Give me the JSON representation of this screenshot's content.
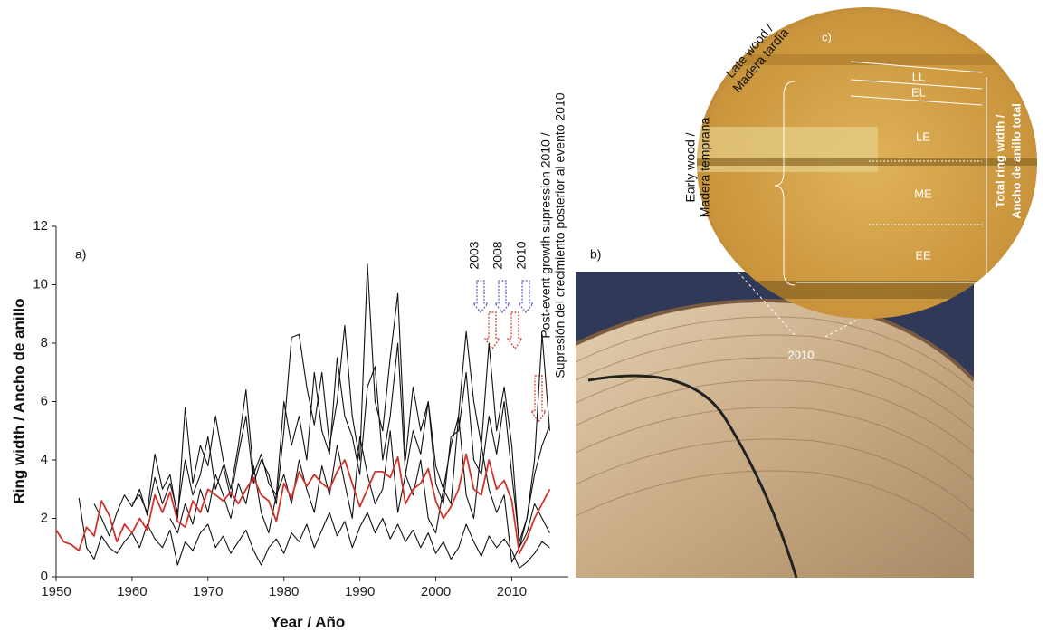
{
  "chart_data": {
    "type": "line",
    "panel_label": "a)",
    "x_label": "Year / Año",
    "y_label": "Ring width / Ancho de anillo",
    "x": [
      1950,
      1951,
      1952,
      1953,
      1954,
      1955,
      1956,
      1957,
      1958,
      1959,
      1960,
      1961,
      1962,
      1963,
      1964,
      1965,
      1966,
      1967,
      1968,
      1969,
      1970,
      1971,
      1972,
      1973,
      1974,
      1975,
      1976,
      1977,
      1978,
      1979,
      1980,
      1981,
      1982,
      1983,
      1984,
      1985,
      1986,
      1987,
      1988,
      1989,
      1990,
      1991,
      1992,
      1993,
      1994,
      1995,
      1996,
      1997,
      1998,
      1999,
      2000,
      2001,
      2002,
      2003,
      2004,
      2005,
      2006,
      2007,
      2008,
      2009,
      2010,
      2011,
      2012,
      2013,
      2014,
      2015
    ],
    "xlim": [
      1950,
      2016.5
    ],
    "xticks": [
      1950,
      1960,
      1970,
      1980,
      1990,
      2000,
      2010
    ],
    "ylim": [
      0,
      12
    ],
    "yticks": [
      0,
      2,
      4,
      6,
      8,
      10,
      12
    ],
    "grid": false,
    "series": [
      {
        "color": "#111111",
        "values": [
          null,
          null,
          null,
          null,
          null,
          2.5,
          2.0,
          1.4,
          2.2,
          2.8,
          2.4,
          3.0,
          2.1,
          3.4,
          2.5,
          3.2,
          2.2,
          4.0,
          2.8,
          3.5,
          4.8,
          3.0,
          3.8,
          2.7,
          4.2,
          5.5,
          3.2,
          4.0,
          3.5,
          2.5,
          5.0,
          8.2,
          8.3,
          6.5,
          5.2,
          7.0,
          4.5,
          6.0,
          8.6,
          5.5,
          4.0,
          10.7,
          6.0,
          5.0,
          7.5,
          9.7,
          4.0,
          6.5,
          5.0,
          6.0,
          3.8,
          3.0,
          4.5,
          5.5,
          8.4,
          6.0,
          4.5,
          8.0,
          5.0,
          6.5,
          4.5,
          1.0,
          2.0,
          4.0,
          8.3,
          5.0
        ]
      },
      {
        "color": "#111111",
        "values": [
          null,
          null,
          null,
          2.7,
          1.0,
          0.6,
          1.4,
          1.0,
          0.8,
          1.2,
          1.5,
          1.0,
          1.8,
          1.3,
          1.0,
          1.6,
          0.4,
          1.2,
          0.9,
          1.5,
          1.8,
          1.0,
          1.4,
          0.8,
          1.2,
          1.6,
          0.9,
          0.4,
          1.0,
          1.3,
          0.8,
          1.5,
          1.2,
          1.8,
          1.0,
          1.6,
          2.2,
          1.4,
          1.9,
          1.0,
          1.7,
          2.2,
          1.5,
          2.0,
          1.3,
          1.8,
          1.2,
          1.6,
          1.0,
          1.5,
          0.8,
          1.2,
          0.6,
          1.0,
          1.8,
          1.2,
          0.7,
          1.4,
          1.0,
          1.3,
          0.9,
          0.3,
          0.5,
          0.8,
          1.2,
          1.0
        ]
      },
      {
        "color": "#111111",
        "values": [
          null,
          null,
          null,
          null,
          null,
          null,
          null,
          null,
          null,
          null,
          2.5,
          2.8,
          2.2,
          4.2,
          3.0,
          3.5,
          2.0,
          5.8,
          3.2,
          4.5,
          3.8,
          5.5,
          4.0,
          3.0,
          4.5,
          6.4,
          3.5,
          4.2,
          3.2,
          2.8,
          6.0,
          4.5,
          5.5,
          4.0,
          7.0,
          5.0,
          4.2,
          7.5,
          5.5,
          4.8,
          3.5,
          6.5,
          7.2,
          4.0,
          5.5,
          8.0,
          3.5,
          5.0,
          4.2,
          6.0,
          3.2,
          2.5,
          4.8,
          5.0,
          7.0,
          4.0,
          3.5,
          5.5,
          4.2,
          6.0,
          3.5,
          1.2,
          2.0,
          3.5,
          4.5,
          5.2
        ]
      },
      {
        "color": "#111111",
        "values": [
          null,
          null,
          null,
          null,
          null,
          null,
          null,
          null,
          null,
          null,
          null,
          null,
          null,
          null,
          null,
          2.0,
          1.5,
          2.5,
          1.8,
          3.0,
          2.2,
          3.5,
          2.8,
          2.0,
          3.2,
          2.5,
          3.8,
          2.2,
          1.5,
          2.8,
          3.5,
          2.5,
          4.0,
          3.0,
          2.2,
          3.8,
          2.8,
          4.5,
          3.2,
          2.0,
          4.8,
          3.5,
          2.5,
          3.0,
          5.0,
          2.2,
          3.5,
          2.8,
          4.0,
          2.0,
          1.5,
          3.0,
          2.5,
          5.5,
          2.8,
          2.0,
          4.5,
          3.0,
          2.2,
          2.8,
          0.5,
          1.0,
          1.5,
          2.5,
          2.0,
          1.5
        ]
      },
      {
        "color": "#d0332b",
        "values": [
          1.6,
          1.2,
          1.1,
          0.9,
          1.7,
          1.4,
          2.6,
          2.1,
          1.2,
          1.8,
          1.5,
          2.0,
          1.6,
          2.8,
          2.2,
          2.9,
          1.9,
          1.7,
          2.6,
          2.2,
          3.0,
          2.8,
          2.6,
          2.9,
          2.5,
          3.0,
          3.4,
          2.8,
          2.6,
          1.9,
          3.2,
          2.7,
          3.6,
          3.1,
          3.5,
          3.2,
          3.0,
          3.6,
          4.0,
          3.2,
          2.4,
          3.0,
          3.6,
          3.6,
          3.4,
          4.1,
          2.5,
          3.0,
          3.2,
          3.7,
          2.6,
          2.0,
          2.4,
          3.0,
          4.2,
          3.0,
          2.8,
          4.0,
          3.0,
          3.3,
          2.6,
          0.8,
          1.3,
          2.0,
          2.5,
          3.0
        ]
      }
    ],
    "annotations": {
      "event_years": [
        "2003",
        "2008",
        "2010"
      ],
      "post_event": [
        "Post-event growth supression 2010 /",
        "Supresión del crecimiento posterior al evento 2010"
      ]
    }
  },
  "figure": {
    "photo_b": {
      "label": "b)",
      "year": "2010"
    },
    "photo_c": {
      "label": "c)",
      "late_wood": [
        "Late wood /",
        "Madera tardía"
      ],
      "early_wood": [
        "Early wood /",
        "Madera temprana"
      ],
      "zones": [
        "LL",
        "EL",
        "LE",
        "ME",
        "EE"
      ],
      "total": [
        "Total ring width /",
        "Ancho de anillo total"
      ]
    }
  }
}
